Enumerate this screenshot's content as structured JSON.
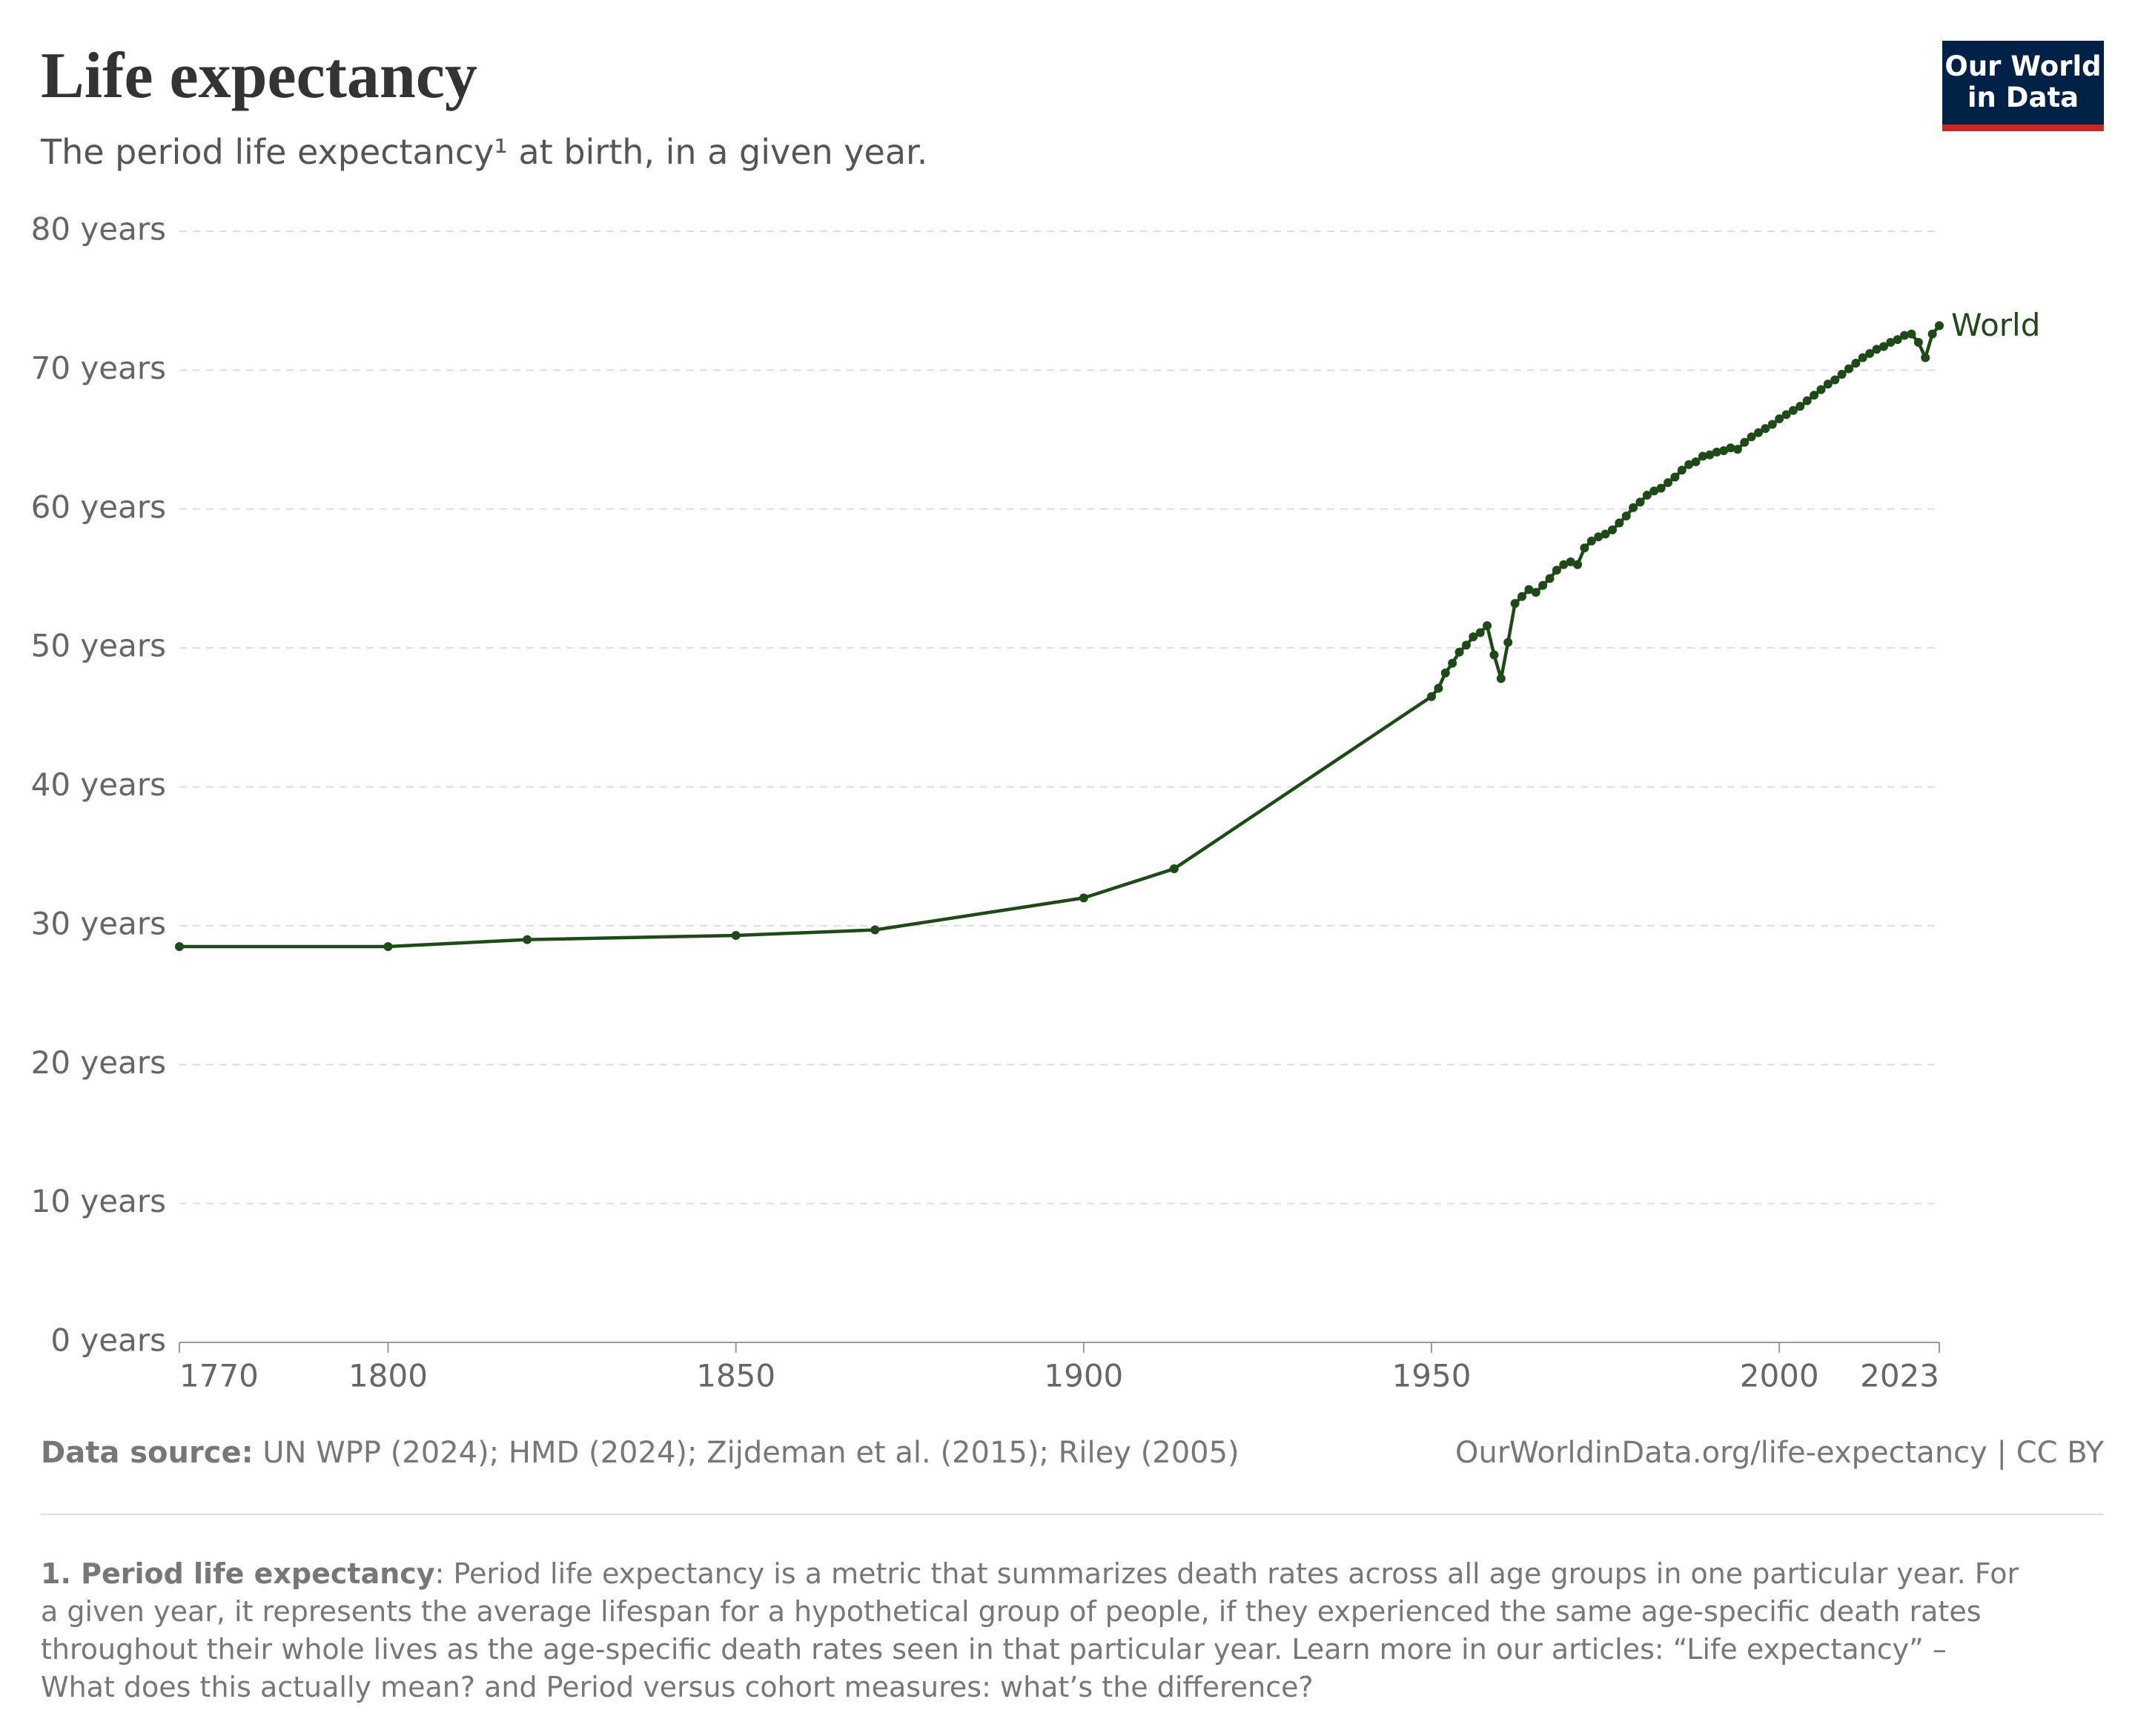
{
  "chart_data": {
    "type": "line",
    "title": "Life expectancy",
    "subtitle": "The period life expectancy¹ at birth, in a given year.",
    "x": [
      1770,
      1800,
      1820,
      1850,
      1870,
      1900,
      1913,
      1950,
      1951,
      1952,
      1953,
      1954,
      1955,
      1956,
      1957,
      1958,
      1959,
      1960,
      1961,
      1962,
      1963,
      1964,
      1965,
      1966,
      1967,
      1968,
      1969,
      1970,
      1971,
      1972,
      1973,
      1974,
      1975,
      1976,
      1977,
      1978,
      1979,
      1980,
      1981,
      1982,
      1983,
      1984,
      1985,
      1986,
      1987,
      1988,
      1989,
      1990,
      1991,
      1992,
      1993,
      1994,
      1995,
      1996,
      1997,
      1998,
      1999,
      2000,
      2001,
      2002,
      2003,
      2004,
      2005,
      2006,
      2007,
      2008,
      2009,
      2010,
      2011,
      2012,
      2013,
      2014,
      2015,
      2016,
      2017,
      2018,
      2019,
      2020,
      2021,
      2022,
      2023
    ],
    "series": [
      {
        "name": "World",
        "color": "#1d4a17",
        "values": [
          28.5,
          28.5,
          29.0,
          29.3,
          29.7,
          32.0,
          34.1,
          46.5,
          47.1,
          48.2,
          48.9,
          49.7,
          50.2,
          50.8,
          51.1,
          51.6,
          49.5,
          47.8,
          50.4,
          53.2,
          53.7,
          54.2,
          54.0,
          54.5,
          55.0,
          55.6,
          56.0,
          56.2,
          56.0,
          57.2,
          57.7,
          58.0,
          58.2,
          58.5,
          59.0,
          59.5,
          60.1,
          60.5,
          61.0,
          61.3,
          61.5,
          61.9,
          62.3,
          62.8,
          63.2,
          63.4,
          63.8,
          63.9,
          64.1,
          64.2,
          64.4,
          64.3,
          64.8,
          65.2,
          65.5,
          65.8,
          66.1,
          66.5,
          66.8,
          67.1,
          67.4,
          67.8,
          68.2,
          68.6,
          69.0,
          69.3,
          69.7,
          70.1,
          70.5,
          70.9,
          71.2,
          71.5,
          71.7,
          72.0,
          72.2,
          72.5,
          72.6,
          72.0,
          70.9,
          72.6,
          73.2
        ]
      }
    ],
    "xlim": [
      1770,
      2023
    ],
    "xticks": [
      1770,
      1800,
      1850,
      1900,
      1950,
      2000,
      2023
    ],
    "ylim": [
      0,
      80
    ],
    "yticks": [
      {
        "value": 0,
        "label": "0 years"
      },
      {
        "value": 10,
        "label": "10 years"
      },
      {
        "value": 20,
        "label": "20 years"
      },
      {
        "value": 30,
        "label": "30 years"
      },
      {
        "value": 40,
        "label": "40 years"
      },
      {
        "value": 50,
        "label": "50 years"
      },
      {
        "value": 60,
        "label": "60 years"
      },
      {
        "value": 70,
        "label": "70 years"
      },
      {
        "value": 80,
        "label": "80 years"
      }
    ],
    "grid": true,
    "source_label": "Data source:",
    "source": " UN WPP (2024); HMD (2024); Zijdeman et al. (2015); Riley (2005)",
    "url": "OurWorldinData.org/life-expectancy | CC BY"
  },
  "logo": {
    "line1": "Our World",
    "line2": "in Data"
  },
  "footnote": {
    "term": "1. Period life expectancy",
    "text": ": Period life expectancy is a metric that summarizes death rates across all age groups in one particular year. For a given year, it represents the average lifespan for a hypothetical group of people, if they experienced the same age-specific death rates throughout their whole lives as the age-specific death rates seen in that particular year. Learn more in our articles: “Life expectancy” – What does this actually mean? and Period versus cohort measures: what’s the difference?"
  }
}
